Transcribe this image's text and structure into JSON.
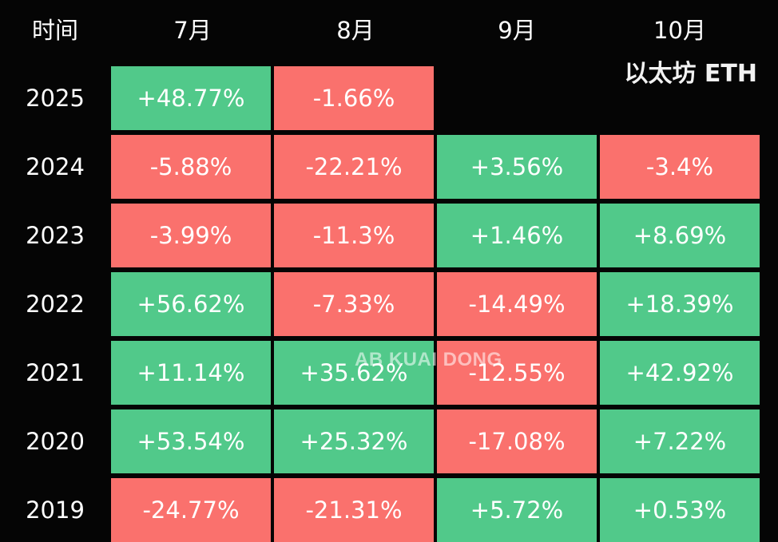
{
  "header": {
    "time_label": "时间",
    "months": [
      "7月",
      "8月",
      "9月",
      "10月"
    ]
  },
  "asset_label": "以太坊 ETH",
  "watermark": "AB KUAI DONG",
  "colors": {
    "positive": "#51c98a",
    "negative": "#fa716d",
    "background": "#050505"
  },
  "chart_data": {
    "type": "table",
    "columns": [
      "7月",
      "8月",
      "9月",
      "10月"
    ],
    "rows": [
      {
        "year": "2025",
        "values": [
          "+48.77%",
          "-1.66%",
          "",
          ""
        ]
      },
      {
        "year": "2024",
        "values": [
          "-5.88%",
          "-22.21%",
          "+3.56%",
          "-3.4%"
        ]
      },
      {
        "year": "2023",
        "values": [
          "-3.99%",
          "-11.3%",
          "+1.46%",
          "+8.69%"
        ]
      },
      {
        "year": "2022",
        "values": [
          "+56.62%",
          "-7.33%",
          "-14.49%",
          "+18.39%"
        ]
      },
      {
        "year": "2021",
        "values": [
          "+11.14%",
          "+35.62%",
          "-12.55%",
          "+42.92%"
        ]
      },
      {
        "year": "2020",
        "values": [
          "+53.54%",
          "+25.32%",
          "-17.08%",
          "+7.22%"
        ]
      },
      {
        "year": "2019",
        "values": [
          "-24.77%",
          "-21.31%",
          "+5.72%",
          "+0.53%"
        ]
      }
    ]
  }
}
